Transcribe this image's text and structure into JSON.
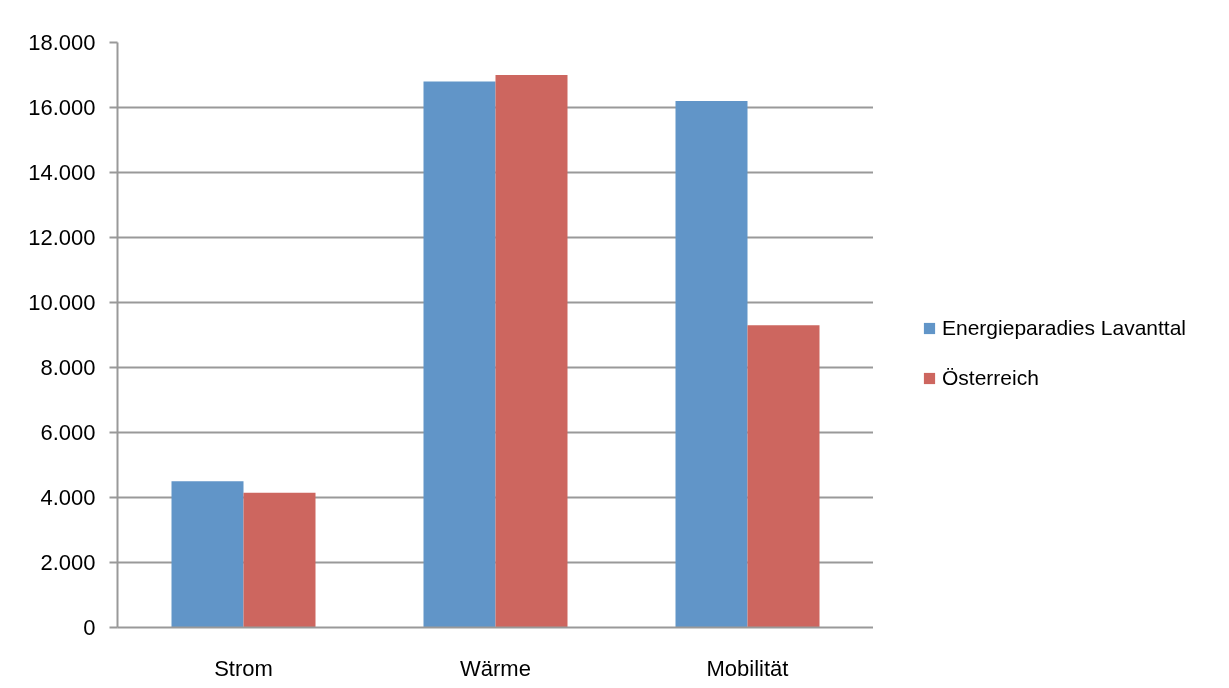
{
  "chart_data": {
    "type": "bar",
    "categories": [
      "Strom",
      "Wärme",
      "Mobilität"
    ],
    "series": [
      {
        "name": "Energieparadies Lavanttal",
        "color": "#6195c8",
        "values": [
          4500,
          16800,
          16200
        ]
      },
      {
        "name": "Österreich",
        "color": "#cd665f",
        "values": [
          4150,
          17000,
          9300
        ]
      }
    ],
    "ylim": [
      0,
      18000
    ],
    "yticks": [
      0,
      {
        "value": 2000,
        "label": "2.000"
      },
      {
        "value": 4000,
        "label": "4.000"
      },
      {
        "value": 6000,
        "label": "6.000"
      },
      {
        "value": 8000,
        "label": "8.000"
      },
      {
        "value": 10000,
        "label": "10.000"
      },
      {
        "value": 12000,
        "label": "12.000"
      },
      {
        "value": 14000,
        "label": "14.000"
      },
      {
        "value": 16000,
        "label": "16.000"
      },
      {
        "value": 18000,
        "label": "18.000"
      }
    ],
    "grid": "y",
    "legend": "right"
  }
}
